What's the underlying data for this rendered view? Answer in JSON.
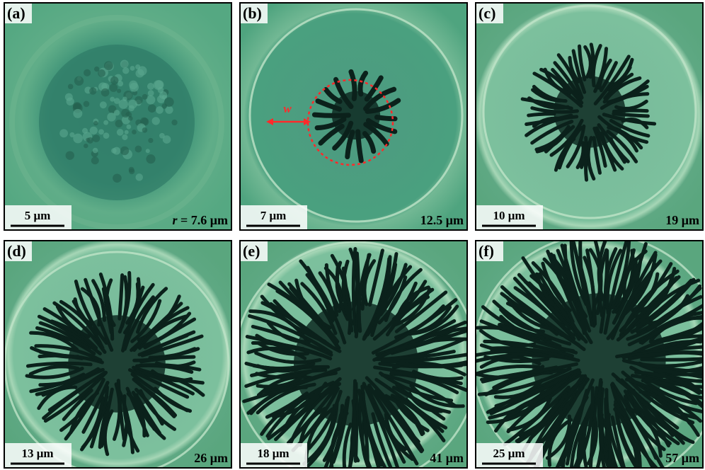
{
  "panels": [
    {
      "label": "(a)",
      "scale_bar": "5 μm",
      "radius_symbol": "r",
      "radius": "= 7.6 μm"
    },
    {
      "label": "(b)",
      "scale_bar": "7 μm",
      "radius": "12.5 μm",
      "annotation": "w"
    },
    {
      "label": "(c)",
      "scale_bar": "10 μm",
      "radius": "19 μm"
    },
    {
      "label": "(d)",
      "scale_bar": "13 μm",
      "radius": "26 μm"
    },
    {
      "label": "(e)",
      "scale_bar": "18 μm",
      "radius": "41 μm"
    },
    {
      "label": "(f)",
      "scale_bar": "25 μm",
      "radius": "57 μm"
    }
  ]
}
